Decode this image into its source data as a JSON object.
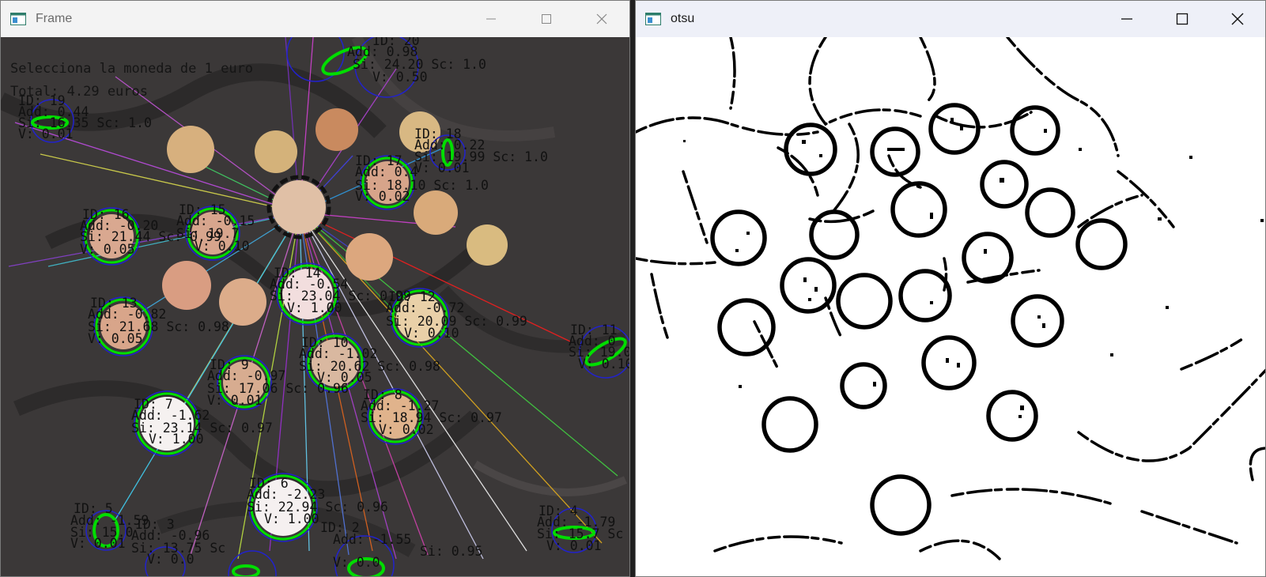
{
  "frame_window": {
    "title": "Frame",
    "overlay": {
      "instruction": "Selecciona la moneda de 1 euro",
      "total": "Total: 4.29 euros"
    },
    "coin_labels": [
      {
        "id": "ID: 19",
        "add": "Add: 0.44",
        "si": "Si: 16.35 Sc: 1.0",
        "v": "V: 0.01"
      },
      {
        "id": "ID: 18",
        "add": "Add: 0.22",
        "si": "Si: 19.99 Sc: 1.0",
        "v": "V: 0.01"
      },
      {
        "id": "ID: 17",
        "add": "Add: 0.4",
        "si": "Si: 18.10 Sc: 1.0",
        "v": "V: 0.02"
      },
      {
        "id": "ID: 16",
        "add": "Add: -0.20",
        "si": "Si: 21.44 Sc: 0.99",
        "v": "V: 0.05"
      },
      {
        "id": "ID: 15",
        "add": "Add: -0.15",
        "si": "Si: 19.7",
        "v": "V: 0.10"
      },
      {
        "id": "ID: 14",
        "add": "Add: -0.54",
        "si": "Si: 23.04 Sc: 0.99",
        "v": "V: 1.00"
      },
      {
        "id": "ID: 13",
        "add": "Add: -0.82",
        "si": "Si: 21.68 Sc: 0.98",
        "v": "V: 0.05"
      },
      {
        "id": "ID: 12",
        "add": "Add: -0.72",
        "si": "Si: 20.09 Sc: 0.99",
        "v": "V: 0.10"
      },
      {
        "id": "ID: 11",
        "add": "Add: 0",
        "si": "Si: 19.0",
        "v": "V: 0.10"
      },
      {
        "id": "ID: 10",
        "add": "Add: -1.02",
        "si": "Si: 20.62 Sc: 0.98",
        "v": "V: 0.05"
      },
      {
        "id": "ID: 9",
        "add": "Add: -0.97",
        "si": "Si: 17.06 Sc: 0.96",
        "v": "V: 0.01"
      },
      {
        "id": "ID: 8",
        "add": "Add: -1.27",
        "si": "Si: 18.94 Sc: 0.97",
        "v": "V: 0.02"
      },
      {
        "id": "ID: 7",
        "add": "Add: -1.62",
        "si": "Si: 23.14 Sc: 0.97",
        "v": "V: 1.00"
      },
      {
        "id": "ID: 6",
        "add": "Add: -2.23",
        "si": "Si: 22.94 Sc: 0.96",
        "v": "V: 1.00"
      },
      {
        "id": "ID: 5",
        "add": "Add: -1.59",
        "si": "Si: 15.0",
        "v": "V: 0.01"
      },
      {
        "id": "ID: 4",
        "add": "Add: -1.79",
        "si": "Si: 15.7 Sc",
        "v": "V: 0.01"
      },
      {
        "id": "ID: 3",
        "add": "Add: -0.96",
        "si": "Si: 13.75 Sc",
        "v": "V: 0.0"
      },
      {
        "id": "ID: 2",
        "add": "Add: -1.55",
        "si": "Si: 0.95",
        "v": "V: 0.0"
      },
      {
        "id": "ID: 20",
        "add": "Add: 0.98",
        "si": "Si: 24.20 Sc: 1.0",
        "v": "V: 0.50"
      }
    ]
  },
  "otsu_window": {
    "title": "otsu"
  },
  "window_controls": {
    "minimize": "minimize-icon",
    "maximize": "maximize-icon",
    "close": "close-icon"
  },
  "colors": {
    "detection_green": "#00e000",
    "detection_blue": "#1a1ad6",
    "selected_black": "#111111"
  }
}
